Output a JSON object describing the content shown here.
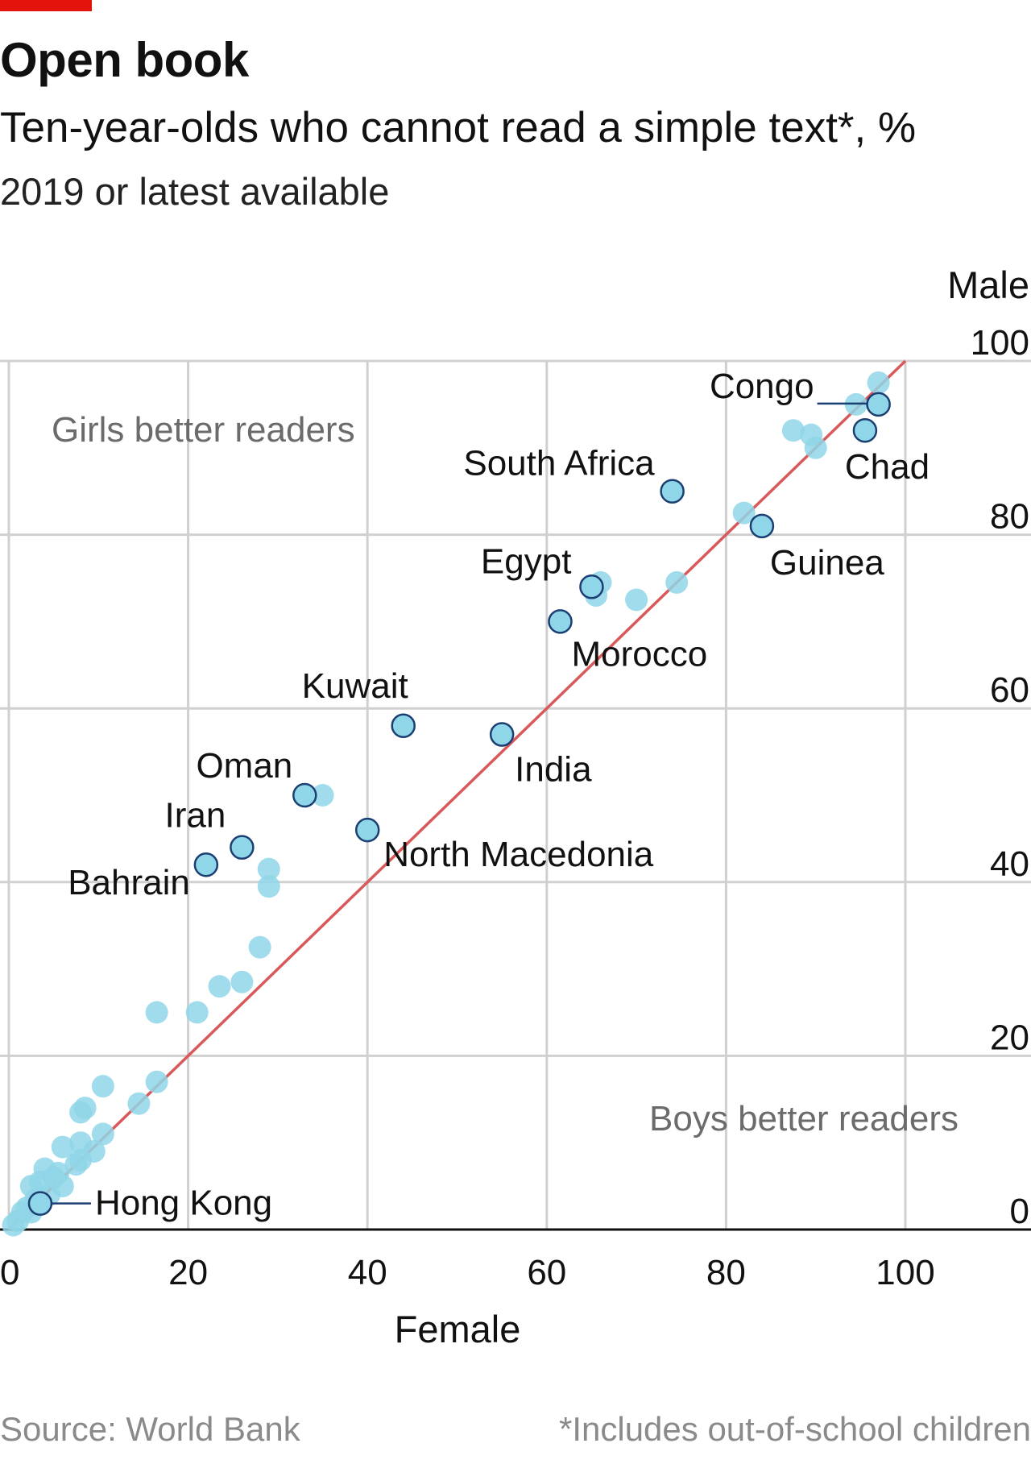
{
  "header": {
    "title": "Open book",
    "subtitle": "Ten-year-olds who cannot read a simple text*, %",
    "subtitle2": "2019 or latest available"
  },
  "footer": {
    "source": "Source: World Bank",
    "note": "*Includes out-of-school children"
  },
  "colors": {
    "accent": "#e3120b",
    "dot": "#8fd6e8",
    "dot_outline": "#1c3f73",
    "diagonal": "#d9595a",
    "grid": "#d0d0d0"
  },
  "chart_data": {
    "type": "scatter",
    "xlabel": "Female",
    "ylabel": "Male",
    "xlim": [
      0,
      115
    ],
    "ylim": [
      0,
      100
    ],
    "xticks": [
      "0",
      "20",
      "40",
      "60",
      "80",
      "100"
    ],
    "yticks": [
      "0",
      "20",
      "40",
      "60",
      "80",
      "100"
    ],
    "grid": true,
    "reference_line": "x = y",
    "region_labels": [
      {
        "text": "Girls better readers",
        "position": "top-left"
      },
      {
        "text": "Boys better readers",
        "position": "bottom-right"
      }
    ],
    "labeled_points": [
      {
        "name": "Congo",
        "x": 97,
        "y": 95
      },
      {
        "name": "Chad",
        "x": 95.5,
        "y": 92
      },
      {
        "name": "South Africa",
        "x": 74,
        "y": 85
      },
      {
        "name": "Guinea",
        "x": 84,
        "y": 81
      },
      {
        "name": "Egypt",
        "x": 65,
        "y": 74
      },
      {
        "name": "Morocco",
        "x": 61.5,
        "y": 70
      },
      {
        "name": "Kuwait",
        "x": 44,
        "y": 58
      },
      {
        "name": "India",
        "x": 55,
        "y": 57
      },
      {
        "name": "Oman",
        "x": 33,
        "y": 50
      },
      {
        "name": "North Macedonia",
        "x": 40,
        "y": 46
      },
      {
        "name": "Iran",
        "x": 26,
        "y": 44
      },
      {
        "name": "Bahrain",
        "x": 22,
        "y": 42
      },
      {
        "name": "Hong Kong",
        "x": 3.5,
        "y": 3
      }
    ],
    "other_points": [
      {
        "x": 97,
        "y": 97.5
      },
      {
        "x": 94.5,
        "y": 95
      },
      {
        "x": 87.5,
        "y": 92
      },
      {
        "x": 89.5,
        "y": 91.5
      },
      {
        "x": 90,
        "y": 90
      },
      {
        "x": 82,
        "y": 82.5
      },
      {
        "x": 66,
        "y": 74.5
      },
      {
        "x": 65.5,
        "y": 73
      },
      {
        "x": 70,
        "y": 72.5
      },
      {
        "x": 74.5,
        "y": 74.5
      },
      {
        "x": 35,
        "y": 50
      },
      {
        "x": 29,
        "y": 41.5
      },
      {
        "x": 29,
        "y": 39.5
      },
      {
        "x": 28,
        "y": 32.5
      },
      {
        "x": 26,
        "y": 28.5
      },
      {
        "x": 23.5,
        "y": 28
      },
      {
        "x": 21,
        "y": 25
      },
      {
        "x": 16.5,
        "y": 25
      },
      {
        "x": 16.5,
        "y": 17
      },
      {
        "x": 14.5,
        "y": 14.5
      },
      {
        "x": 10.5,
        "y": 16.5
      },
      {
        "x": 10.5,
        "y": 11
      },
      {
        "x": 8.5,
        "y": 14
      },
      {
        "x": 8,
        "y": 13.5
      },
      {
        "x": 9.5,
        "y": 9
      },
      {
        "x": 8,
        "y": 10
      },
      {
        "x": 6,
        "y": 9.5
      },
      {
        "x": 7.5,
        "y": 7.5
      },
      {
        "x": 8,
        "y": 8
      },
      {
        "x": 5.5,
        "y": 6.5
      },
      {
        "x": 4,
        "y": 7
      },
      {
        "x": 6,
        "y": 5
      },
      {
        "x": 3.5,
        "y": 5.5
      },
      {
        "x": 4.5,
        "y": 4
      },
      {
        "x": 2.5,
        "y": 5
      },
      {
        "x": 3,
        "y": 3.5
      },
      {
        "x": 2,
        "y": 2.5
      },
      {
        "x": 1.5,
        "y": 2
      },
      {
        "x": 1,
        "y": 1
      },
      {
        "x": 2.5,
        "y": 2
      },
      {
        "x": 0.5,
        "y": 0.5
      },
      {
        "x": 5,
        "y": 6
      }
    ]
  }
}
